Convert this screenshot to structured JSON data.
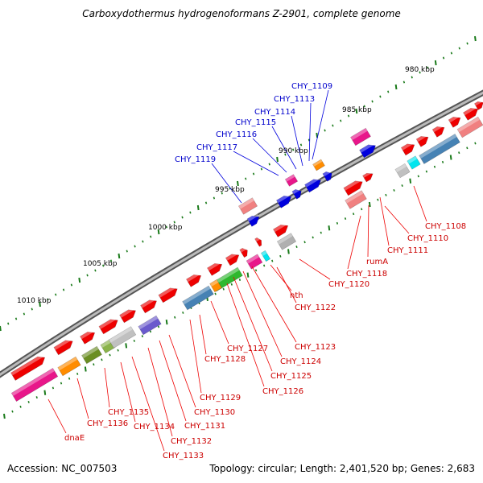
{
  "title": "Carboxydothermus hydrogenoformans Z-2901, complete genome",
  "footer": {
    "accession": "Accession: NC_007503",
    "info": "Topology: circular; Length: 2,401,520 bp; Genes: 2,683"
  },
  "colors": {
    "forward_gene": "#ee0000",
    "reverse_gene": "#0000dd",
    "forward_label": "#cc0000",
    "reverse_label": "#0000cc",
    "backbone": "#777777",
    "tick": "#1a7a1a"
  },
  "ruler_labels": [
    "980 kbp",
    "985 kbp",
    "990 kbp",
    "995 kbp",
    "1000 kbp",
    "1005 kbp",
    "1010 kbp"
  ],
  "forward_gene_labels": [
    "CHY_1108",
    "CHY_1110",
    "CHY_1111",
    "rumA",
    "CHY_1118",
    "CHY_1120",
    "nth",
    "CHY_1122",
    "CHY_1123",
    "CHY_1124",
    "CHY_1125",
    "CHY_1126",
    "CHY_1127",
    "CHY_1128",
    "CHY_1129",
    "CHY_1130",
    "CHY_1131",
    "CHY_1132",
    "CHY_1133",
    "CHY_1134",
    "CHY_1135",
    "CHY_1136",
    "dnaE"
  ],
  "reverse_gene_labels": [
    "CHY_1109",
    "CHY_1113",
    "CHY_1114",
    "CHY_1115",
    "CHY_1116",
    "CHY_1117",
    "CHY_1119"
  ]
}
